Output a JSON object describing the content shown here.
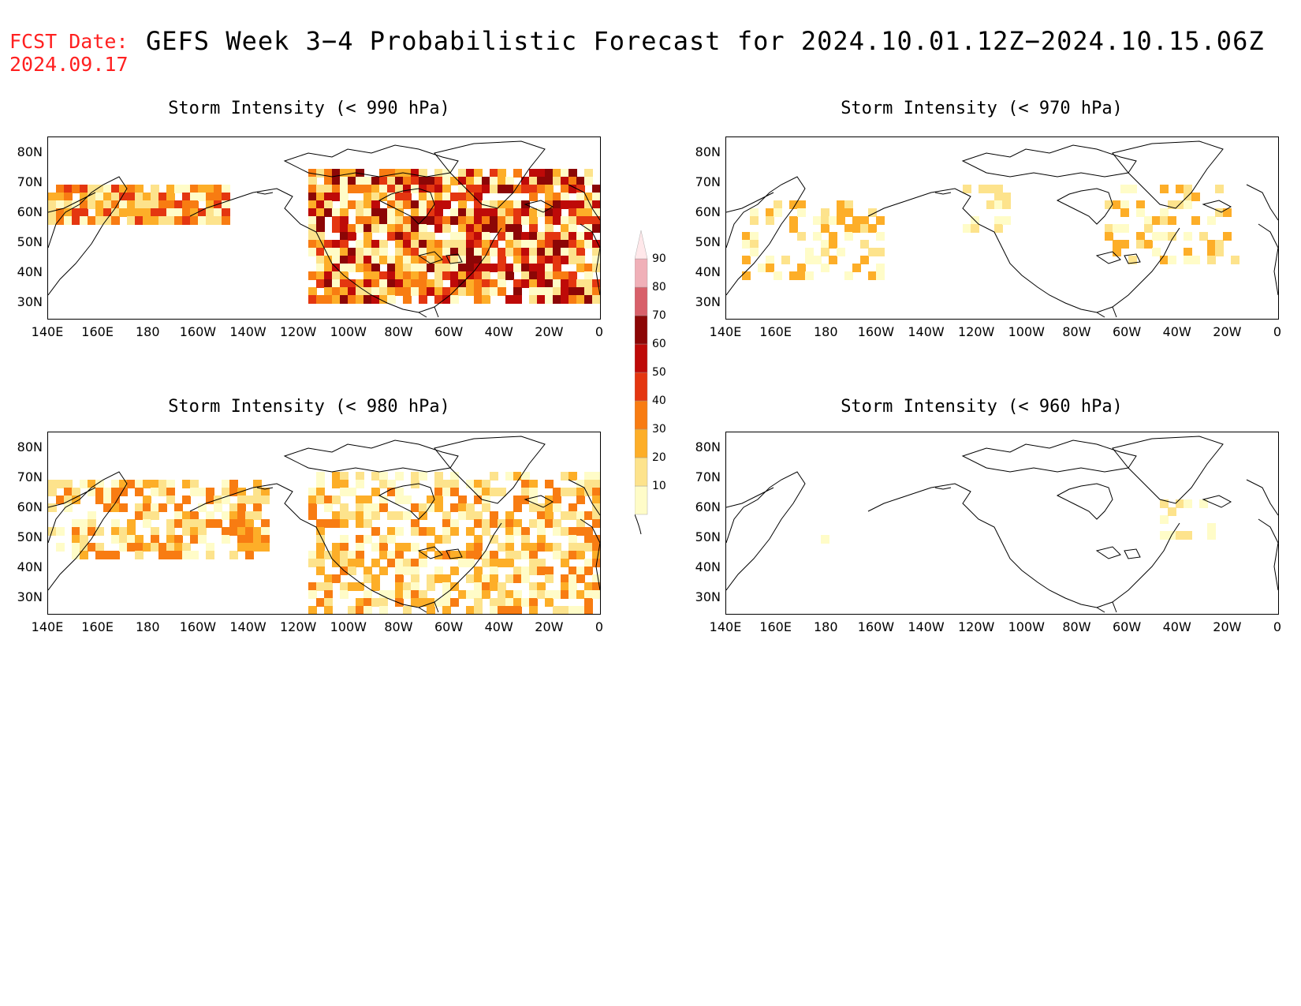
{
  "fcst_label": "FCST Date:",
  "fcst_date": "2024.09.17",
  "title": "GEFS Week 3−4 Probabilistic Forecast for 2024.10.01.12Z−2024.10.15.06Z",
  "panels": [
    {
      "id": "p990",
      "title": "Storm Intensity (< 990 hPa)"
    },
    {
      "id": "p970",
      "title": "Storm Intensity (< 970 hPa)"
    },
    {
      "id": "p980",
      "title": "Storm Intensity (< 980 hPa)"
    },
    {
      "id": "p960",
      "title": "Storm Intensity (< 960 hPa)"
    }
  ],
  "lat_labels": [
    "80N",
    "70N",
    "60N",
    "50N",
    "40N",
    "30N"
  ],
  "lon_labels": [
    "140E",
    "160E",
    "180",
    "160W",
    "140W",
    "120W",
    "100W",
    "80W",
    "60W",
    "40W",
    "20W",
    "0"
  ],
  "colorbar": {
    "levels": [
      "10",
      "20",
      "30",
      "40",
      "50",
      "60",
      "70",
      "80",
      "90"
    ],
    "colors": [
      "#fffcc8",
      "#fde38c",
      "#fdae28",
      "#f87c12",
      "#e43610",
      "#be0a08",
      "#8c0606",
      "#d8606a",
      "#f0b0b8",
      "#ffe8ea"
    ]
  }
}
